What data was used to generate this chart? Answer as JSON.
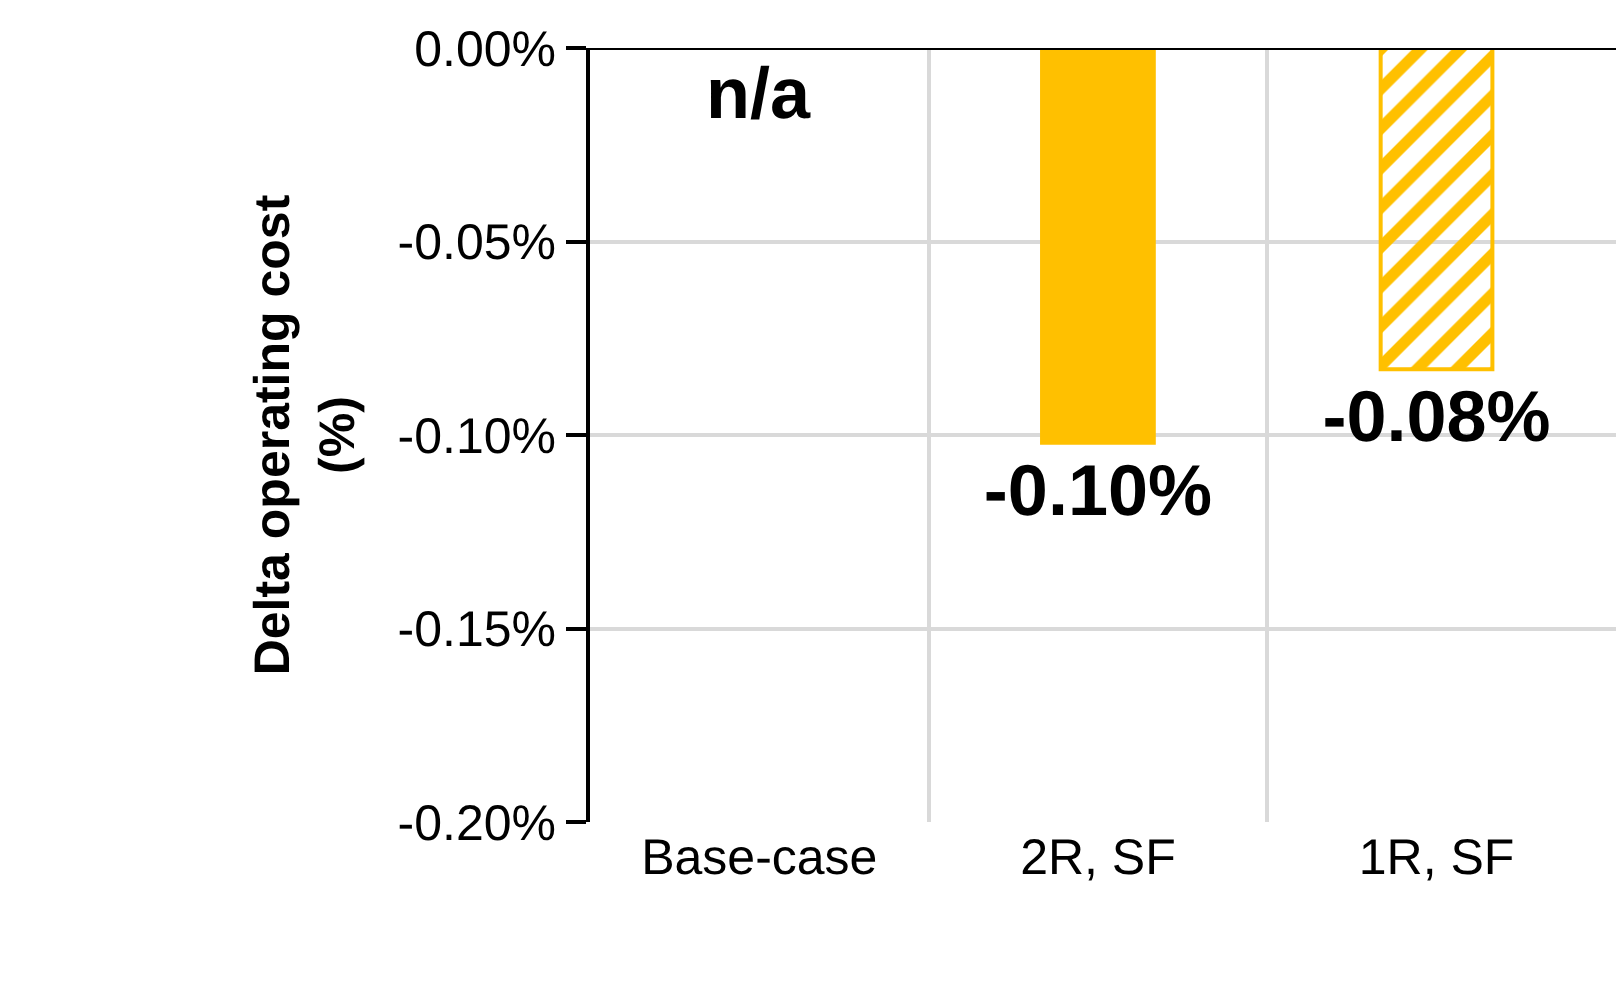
{
  "chart_data": {
    "type": "bar",
    "ylabel": "Delta operating cost\n(%)",
    "categories": [
      "Base-case",
      "2R, SF",
      "1R, SF"
    ],
    "series": [
      {
        "color": "#ffc000",
        "values": [
          null,
          -0.102,
          -0.083
        ],
        "value_labels": [
          "n/a",
          "-0.10%",
          "-0.08%"
        ]
      }
    ],
    "ylim": [
      -0.2,
      0
    ],
    "yticks": [
      {
        "value": 0,
        "label": "0.00%"
      },
      {
        "value": -0.05,
        "label": "-0.05%"
      },
      {
        "value": -0.1,
        "label": "-0.10%"
      },
      {
        "value": -0.15,
        "label": "-0.15%"
      },
      {
        "value": -0.2,
        "label": "-0.20%"
      }
    ],
    "grid": true
  }
}
